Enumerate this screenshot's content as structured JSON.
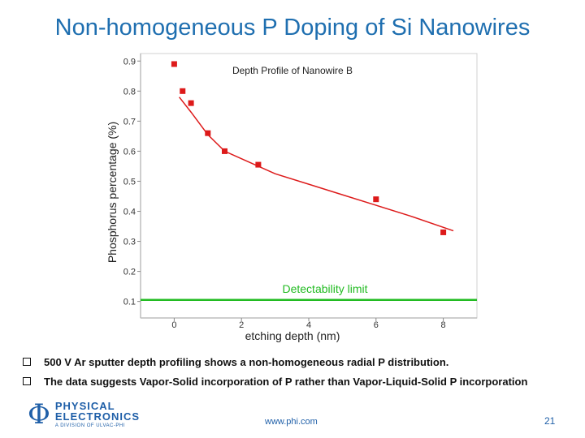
{
  "slide": {
    "title": "Non-homogeneous P Doping of Si Nanowires",
    "bullets": [
      "500 V Ar sputter depth profiling shows a non-homogeneous radial P distribution.",
      "The data suggests Vapor-Solid incorporation of P rather than Vapor-Liquid-Solid P incorporation"
    ],
    "footer": {
      "logo_line1": "PHYSICAL",
      "logo_line2": "ELECTRONICS",
      "logo_line3": "A DIVISION OF ULVAC-PHI",
      "url": "www.phi.com",
      "page_number": "21"
    }
  },
  "chart_data": {
    "type": "scatter",
    "title": "Depth Profile of Nanowire B",
    "xlabel": "etching depth (nm)",
    "ylabel": "Phosphorus percentage (%)",
    "xlim": [
      -1,
      9
    ],
    "ylim": [
      0.045,
      0.925
    ],
    "x_ticks": [
      0,
      2,
      4,
      6,
      8
    ],
    "y_ticks": [
      0.1,
      0.2,
      0.3,
      0.4,
      0.5,
      0.6,
      0.7,
      0.8,
      0.9
    ],
    "grid": false,
    "series": [
      {
        "kind": "points",
        "color": "#dd1a1a",
        "x": [
          0.0,
          0.25,
          0.5,
          1.0,
          1.5,
          2.5,
          6.0,
          8.0
        ],
        "y": [
          0.89,
          0.8,
          0.76,
          0.66,
          0.6,
          0.555,
          0.44,
          0.33
        ]
      },
      {
        "kind": "fit-line",
        "color": "#dd1a1a",
        "x": [
          0.15,
          0.5,
          1.0,
          1.5,
          2.0,
          3.0,
          4.0,
          5.0,
          6.0,
          7.0,
          8.3
        ],
        "y": [
          0.78,
          0.73,
          0.655,
          0.6,
          0.575,
          0.525,
          0.49,
          0.455,
          0.42,
          0.385,
          0.335
        ]
      }
    ],
    "reference_line": {
      "label": "Detectability limit",
      "y": 0.105,
      "color": "#22bb22"
    }
  }
}
